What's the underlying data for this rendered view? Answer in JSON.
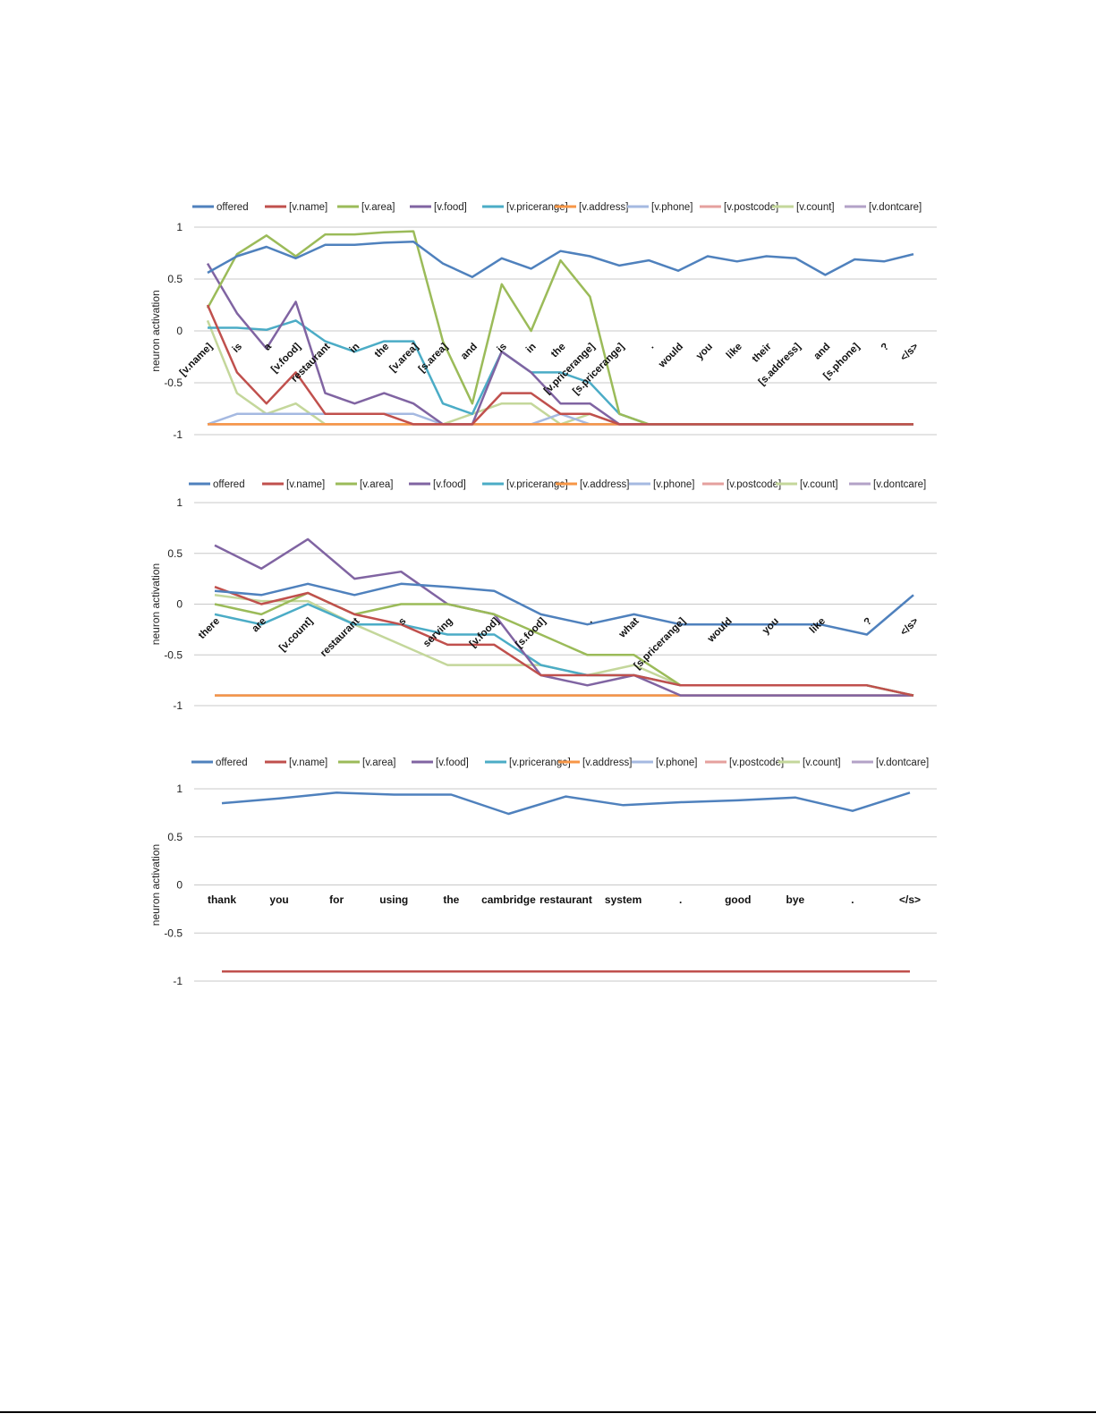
{
  "chart_data": [
    {
      "type": "line",
      "ylabel": "neuron activation",
      "ylim": [
        -1,
        1
      ],
      "yticks": [
        "1",
        "0.5",
        "0",
        "-0.5",
        "-1"
      ],
      "grid": true,
      "legend_position": "top",
      "rotated_categories": true,
      "categories": [
        "[v.name]",
        "is",
        "a",
        "[v.food]",
        "restaurant",
        "in",
        "the",
        "[v.area]",
        "[s.area]",
        "and",
        "is",
        "in",
        "the",
        "[v.pricerange]",
        "[s.pricerange]",
        ".",
        "would",
        "you",
        "like",
        "their",
        "[s.address]",
        "and",
        "[s.phone]",
        "?",
        "</s>"
      ],
      "series": [
        {
          "name": "offered",
          "color": "#4f81bd",
          "values": [
            0.56,
            0.72,
            0.81,
            0.7,
            0.83,
            0.83,
            0.85,
            0.86,
            0.65,
            0.52,
            0.7,
            0.6,
            0.77,
            0.72,
            0.63,
            0.68,
            0.58,
            0.72,
            0.67,
            0.72,
            0.7,
            0.54,
            0.69,
            0.67,
            0.74
          ]
        },
        {
          "name": "[v.name]",
          "color": "#c0504d",
          "values": [
            0.25,
            -0.4,
            -0.7,
            -0.4,
            -0.8,
            -0.8,
            -0.8,
            -0.9,
            -0.9,
            -0.9,
            -0.6,
            -0.6,
            -0.8,
            -0.8,
            -0.9,
            -0.9,
            -0.9,
            -0.9,
            -0.9,
            -0.9,
            -0.9,
            -0.9,
            -0.9,
            -0.9,
            -0.9
          ]
        },
        {
          "name": "[v.area]",
          "color": "#9bbb59",
          "values": [
            0.22,
            0.74,
            0.92,
            0.72,
            0.93,
            0.93,
            0.95,
            0.96,
            -0.1,
            -0.7,
            0.45,
            0.0,
            0.68,
            0.33,
            -0.8,
            -0.9,
            -0.9,
            -0.9,
            -0.9,
            -0.9,
            -0.9,
            -0.9,
            -0.9,
            -0.9,
            -0.9
          ]
        },
        {
          "name": "[v.food]",
          "color": "#8064a2",
          "values": [
            0.65,
            0.17,
            -0.17,
            0.28,
            -0.6,
            -0.7,
            -0.6,
            -0.7,
            -0.9,
            -0.9,
            -0.2,
            -0.4,
            -0.7,
            -0.7,
            -0.9,
            -0.9,
            -0.9,
            -0.9,
            -0.9,
            -0.9,
            -0.9,
            -0.9,
            -0.9,
            -0.9,
            -0.9
          ]
        },
        {
          "name": "[v.pricerange]",
          "color": "#4bacc6",
          "values": [
            0.03,
            0.03,
            0.01,
            0.1,
            -0.1,
            -0.2,
            -0.1,
            -0.1,
            -0.7,
            -0.8,
            -0.2,
            -0.4,
            -0.4,
            -0.5,
            -0.8,
            -0.9,
            -0.9,
            -0.9,
            -0.9,
            -0.9,
            -0.9,
            -0.9,
            -0.9,
            -0.9,
            -0.9
          ]
        },
        {
          "name": "[v.address]",
          "color": "#f79646",
          "values": [
            -0.9,
            -0.9,
            -0.9,
            -0.9,
            -0.9,
            -0.9,
            -0.9,
            -0.9,
            -0.9,
            -0.9,
            -0.9,
            -0.9,
            -0.9,
            -0.9,
            -0.9,
            -0.9,
            -0.9,
            -0.9,
            -0.9,
            -0.9,
            -0.9,
            -0.9,
            -0.9,
            -0.9,
            -0.9
          ]
        },
        {
          "name": "[v.phone]",
          "color": "#a5b9e1",
          "values": [
            -0.9,
            -0.8,
            -0.8,
            -0.8,
            -0.8,
            -0.8,
            -0.8,
            -0.8,
            -0.9,
            -0.9,
            -0.9,
            -0.9,
            -0.8,
            -0.9,
            -0.9,
            -0.9,
            -0.9,
            -0.9,
            -0.9,
            -0.9,
            -0.9,
            -0.9,
            -0.9,
            -0.9,
            -0.9
          ]
        },
        {
          "name": "[v.postcode]",
          "color": "#e5a09e",
          "values": [
            -0.9,
            -0.9,
            -0.9,
            -0.9,
            -0.9,
            -0.9,
            -0.9,
            -0.9,
            -0.9,
            -0.9,
            -0.9,
            -0.9,
            -0.9,
            -0.9,
            -0.9,
            -0.9,
            -0.9,
            -0.9,
            -0.9,
            -0.9,
            -0.9,
            -0.9,
            -0.9,
            -0.9,
            -0.9
          ]
        },
        {
          "name": "[v.count]",
          "color": "#c4d79b",
          "values": [
            0.1,
            -0.6,
            -0.8,
            -0.7,
            -0.9,
            -0.9,
            -0.9,
            -0.9,
            -0.9,
            -0.8,
            -0.7,
            -0.7,
            -0.9,
            -0.8,
            -0.9,
            -0.9,
            -0.9,
            -0.9,
            -0.9,
            -0.9,
            -0.9,
            -0.9,
            -0.9,
            -0.9,
            -0.9
          ]
        },
        {
          "name": "[v.dontcare]",
          "color": "#b3a2c7",
          "values": [
            -0.9,
            -0.9,
            -0.9,
            -0.9,
            -0.9,
            -0.9,
            -0.9,
            -0.9,
            -0.9,
            -0.9,
            -0.9,
            -0.9,
            -0.9,
            -0.9,
            -0.9,
            -0.9,
            -0.9,
            -0.9,
            -0.9,
            -0.9,
            -0.9,
            -0.9,
            -0.9,
            -0.9,
            -0.9
          ]
        }
      ]
    },
    {
      "type": "line",
      "ylabel": "neuron activation",
      "ylim": [
        -1,
        1
      ],
      "yticks": [
        "1",
        "0.5",
        "0",
        "-0.5",
        "-1"
      ],
      "grid": true,
      "legend_position": "top",
      "rotated_categories": true,
      "categories": [
        "there",
        "are",
        "[v.count]",
        "restaurant",
        "s",
        "serving",
        "[v.food]",
        "[s.food]",
        ".",
        "what",
        "[s.pricerange]",
        "would",
        "you",
        "like",
        "?",
        "</s>"
      ],
      "series": [
        {
          "name": "offered",
          "color": "#4f81bd",
          "values": [
            0.13,
            0.09,
            0.2,
            0.09,
            0.2,
            0.17,
            0.13,
            -0.1,
            -0.2,
            -0.1,
            -0.2,
            -0.2,
            -0.2,
            -0.2,
            -0.3,
            0.09
          ]
        },
        {
          "name": "[v.name]",
          "color": "#c0504d",
          "values": [
            0.17,
            0.0,
            0.11,
            -0.1,
            -0.2,
            -0.4,
            -0.4,
            -0.7,
            -0.7,
            -0.7,
            -0.8,
            -0.8,
            -0.8,
            -0.8,
            -0.8,
            -0.9
          ]
        },
        {
          "name": "[v.area]",
          "color": "#9bbb59",
          "values": [
            0.0,
            -0.1,
            0.11,
            -0.1,
            0.0,
            0.0,
            -0.1,
            -0.3,
            -0.5,
            -0.5,
            -0.8,
            -0.8,
            -0.8,
            -0.8,
            -0.8,
            -0.9
          ]
        },
        {
          "name": "[v.food]",
          "color": "#8064a2",
          "values": [
            0.58,
            0.35,
            0.64,
            0.25,
            0.32,
            0.0,
            -0.1,
            -0.7,
            -0.8,
            -0.7,
            -0.9,
            -0.9,
            -0.9,
            -0.9,
            -0.9,
            -0.9
          ]
        },
        {
          "name": "[v.pricerange]",
          "color": "#4bacc6",
          "values": [
            -0.1,
            -0.2,
            0.0,
            -0.2,
            -0.2,
            -0.3,
            -0.3,
            -0.6,
            -0.7,
            -0.7,
            -0.8,
            -0.8,
            -0.8,
            -0.8,
            -0.8,
            -0.9
          ]
        },
        {
          "name": "[v.address]",
          "color": "#f79646",
          "values": [
            -0.9,
            -0.9,
            -0.9,
            -0.9,
            -0.9,
            -0.9,
            -0.9,
            -0.9,
            -0.9,
            -0.9,
            -0.9,
            -0.9,
            -0.9,
            -0.9,
            -0.9,
            -0.9
          ]
        },
        {
          "name": "[v.phone]",
          "color": "#a5b9e1",
          "values": [
            -0.9,
            -0.9,
            -0.9,
            -0.9,
            -0.9,
            -0.9,
            -0.9,
            -0.9,
            -0.9,
            -0.9,
            -0.9,
            -0.9,
            -0.9,
            -0.9,
            -0.9,
            -0.9
          ]
        },
        {
          "name": "[v.postcode]",
          "color": "#e5a09e",
          "values": [
            -0.9,
            -0.9,
            -0.9,
            -0.9,
            -0.9,
            -0.9,
            -0.9,
            -0.9,
            -0.9,
            -0.9,
            -0.9,
            -0.9,
            -0.9,
            -0.9,
            -0.9,
            -0.9
          ]
        },
        {
          "name": "[v.count]",
          "color": "#c4d79b",
          "values": [
            0.09,
            0.03,
            0.03,
            -0.2,
            -0.4,
            -0.6,
            -0.6,
            -0.6,
            -0.7,
            -0.6,
            -0.8,
            -0.8,
            -0.8,
            -0.8,
            -0.8,
            -0.9
          ]
        },
        {
          "name": "[v.dontcare]",
          "color": "#b3a2c7",
          "values": [
            -0.9,
            -0.9,
            -0.9,
            -0.9,
            -0.9,
            -0.9,
            -0.9,
            -0.9,
            -0.9,
            -0.9,
            -0.9,
            -0.9,
            -0.9,
            -0.9,
            -0.9,
            -0.9
          ]
        }
      ]
    },
    {
      "type": "line",
      "ylabel": "neuron activation",
      "ylim": [
        -1,
        1
      ],
      "yticks": [
        "1",
        "0.5",
        "0",
        "-0.5",
        "-1"
      ],
      "grid": true,
      "legend_position": "top",
      "rotated_categories": false,
      "categories": [
        "thank",
        "you",
        "for",
        "using",
        "the",
        "cambridge",
        "restaurant",
        "system",
        ".",
        "good",
        "bye",
        ".",
        "</s>"
      ],
      "series": [
        {
          "name": "offered",
          "color": "#4f81bd",
          "values": [
            0.85,
            0.9,
            0.96,
            0.94,
            0.94,
            0.74,
            0.92,
            0.83,
            0.86,
            0.88,
            0.91,
            0.77,
            0.96
          ]
        },
        {
          "name": "[v.name]",
          "color": "#c0504d",
          "values": [
            -0.9,
            -0.9,
            -0.9,
            -0.9,
            -0.9,
            -0.9,
            -0.9,
            -0.9,
            -0.9,
            -0.9,
            -0.9,
            -0.9,
            -0.9
          ]
        },
        {
          "name": "[v.area]",
          "color": "#9bbb59",
          "values": [
            -0.9,
            -0.9,
            -0.9,
            -0.9,
            -0.9,
            -0.9,
            -0.9,
            -0.9,
            -0.9,
            -0.9,
            -0.9,
            -0.9,
            -0.9
          ]
        },
        {
          "name": "[v.food]",
          "color": "#8064a2",
          "values": [
            -0.9,
            -0.9,
            -0.9,
            -0.9,
            -0.9,
            -0.9,
            -0.9,
            -0.9,
            -0.9,
            -0.9,
            -0.9,
            -0.9,
            -0.9
          ]
        },
        {
          "name": "[v.pricerange]",
          "color": "#4bacc6",
          "values": [
            -0.9,
            -0.9,
            -0.9,
            -0.9,
            -0.9,
            -0.9,
            -0.9,
            -0.9,
            -0.9,
            -0.9,
            -0.9,
            -0.9,
            -0.9
          ]
        },
        {
          "name": "[v.address]",
          "color": "#f79646",
          "values": [
            -0.9,
            -0.9,
            -0.9,
            -0.9,
            -0.9,
            -0.9,
            -0.9,
            -0.9,
            -0.9,
            -0.9,
            -0.9,
            -0.9,
            -0.9
          ]
        },
        {
          "name": "[v.phone]",
          "color": "#a5b9e1",
          "values": [
            -0.9,
            -0.9,
            -0.9,
            -0.9,
            -0.9,
            -0.9,
            -0.9,
            -0.9,
            -0.9,
            -0.9,
            -0.9,
            -0.9,
            -0.9
          ]
        },
        {
          "name": "[v.postcode]",
          "color": "#e5a09e",
          "values": [
            -0.9,
            -0.9,
            -0.9,
            -0.9,
            -0.9,
            -0.9,
            -0.9,
            -0.9,
            -0.9,
            -0.9,
            -0.9,
            -0.9,
            -0.9
          ]
        },
        {
          "name": "[v.count]",
          "color": "#c4d79b",
          "values": [
            -0.9,
            -0.9,
            -0.9,
            -0.9,
            -0.9,
            -0.9,
            -0.9,
            -0.9,
            -0.9,
            -0.9,
            -0.9,
            -0.9,
            -0.9
          ]
        },
        {
          "name": "[v.dontcare]",
          "color": "#b3a2c7",
          "values": [
            -0.9,
            -0.9,
            -0.9,
            -0.9,
            -0.9,
            -0.9,
            -0.9,
            -0.9,
            -0.9,
            -0.9,
            -0.9,
            -0.9,
            -0.9
          ]
        }
      ]
    }
  ]
}
